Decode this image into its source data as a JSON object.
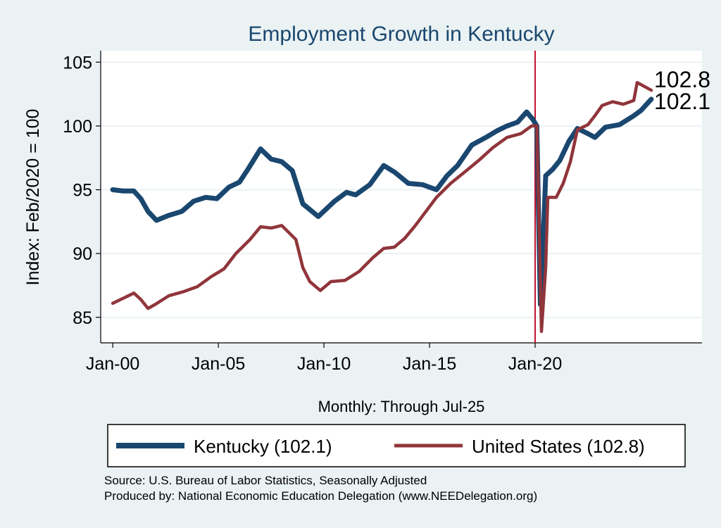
{
  "chart_data": {
    "type": "line",
    "title": "Employment Growth in Kentucky",
    "xlabel": "Monthly: Through Jul-25",
    "ylabel": "Index: Feb/2020 = 100",
    "xlim": [
      1999.43,
      2027.9
    ],
    "ylim": [
      83.0,
      105.9
    ],
    "x_ticks": [
      {
        "value": 2000,
        "label": "Jan-00"
      },
      {
        "value": 2005,
        "label": "Jan-05"
      },
      {
        "value": 2010,
        "label": "Jan-10"
      },
      {
        "value": 2015,
        "label": "Jan-15"
      },
      {
        "value": 2020,
        "label": "Jan-20"
      }
    ],
    "y_ticks": [
      85,
      90,
      95,
      100,
      105
    ],
    "grid": true,
    "reference_line_x": 2020.0,
    "reference_line_color": "#c8102e",
    "series": [
      {
        "name": "Kentucky",
        "legend_label": "Kentucky (102.1)",
        "end_label": "102.1",
        "color": "#1a476f",
        "points": [
          [
            2000.0,
            95.0
          ],
          [
            2000.5,
            94.9
          ],
          [
            2001.0,
            94.9
          ],
          [
            2001.33,
            94.3
          ],
          [
            2001.67,
            93.3
          ],
          [
            2002.07,
            92.6
          ],
          [
            2002.67,
            93.0
          ],
          [
            2003.27,
            93.3
          ],
          [
            2003.83,
            94.1
          ],
          [
            2004.4,
            94.4
          ],
          [
            2004.93,
            94.3
          ],
          [
            2005.5,
            95.2
          ],
          [
            2006.0,
            95.6
          ],
          [
            2006.4,
            96.6
          ],
          [
            2007.0,
            98.2
          ],
          [
            2007.5,
            97.4
          ],
          [
            2008.0,
            97.2
          ],
          [
            2008.5,
            96.5
          ],
          [
            2009.0,
            93.9
          ],
          [
            2009.73,
            92.9
          ],
          [
            2010.5,
            94.1
          ],
          [
            2011.07,
            94.8
          ],
          [
            2011.5,
            94.6
          ],
          [
            2012.17,
            95.4
          ],
          [
            2012.83,
            96.9
          ],
          [
            2013.33,
            96.4
          ],
          [
            2014.0,
            95.5
          ],
          [
            2014.67,
            95.4
          ],
          [
            2015.33,
            95.0
          ],
          [
            2015.83,
            96.1
          ],
          [
            2016.33,
            96.9
          ],
          [
            2017.0,
            98.5
          ],
          [
            2017.67,
            99.1
          ],
          [
            2018.17,
            99.6
          ],
          [
            2018.67,
            100.0
          ],
          [
            2019.17,
            100.3
          ],
          [
            2019.6,
            101.1
          ],
          [
            2019.9,
            100.5
          ],
          [
            2020.08,
            100.0
          ],
          [
            2020.25,
            86.0
          ],
          [
            2020.4,
            91.7
          ],
          [
            2020.5,
            96.1
          ],
          [
            2020.83,
            96.6
          ],
          [
            2021.17,
            97.3
          ],
          [
            2021.6,
            98.8
          ],
          [
            2022.0,
            99.8
          ],
          [
            2022.5,
            99.4
          ],
          [
            2022.83,
            99.1
          ],
          [
            2023.33,
            99.9
          ],
          [
            2024.0,
            100.1
          ],
          [
            2024.67,
            100.8
          ],
          [
            2025.0,
            101.2
          ],
          [
            2025.5,
            102.1
          ]
        ]
      },
      {
        "name": "United States",
        "legend_label": "United States (102.8)",
        "end_label": "102.8",
        "color": "#90353b",
        "points": [
          [
            2000.0,
            86.1
          ],
          [
            2000.5,
            86.5
          ],
          [
            2001.0,
            86.9
          ],
          [
            2001.33,
            86.4
          ],
          [
            2001.67,
            85.7
          ],
          [
            2002.0,
            86.0
          ],
          [
            2002.67,
            86.7
          ],
          [
            2003.33,
            87.0
          ],
          [
            2004.0,
            87.4
          ],
          [
            2004.67,
            88.2
          ],
          [
            2005.27,
            88.8
          ],
          [
            2005.83,
            90.0
          ],
          [
            2006.5,
            91.1
          ],
          [
            2007.0,
            92.1
          ],
          [
            2007.5,
            92.0
          ],
          [
            2008.0,
            92.2
          ],
          [
            2008.67,
            91.1
          ],
          [
            2009.0,
            88.9
          ],
          [
            2009.33,
            87.8
          ],
          [
            2009.83,
            87.1
          ],
          [
            2010.33,
            87.8
          ],
          [
            2011.0,
            87.9
          ],
          [
            2011.67,
            88.6
          ],
          [
            2012.33,
            89.7
          ],
          [
            2012.83,
            90.4
          ],
          [
            2013.33,
            90.5
          ],
          [
            2013.83,
            91.2
          ],
          [
            2014.33,
            92.2
          ],
          [
            2014.83,
            93.3
          ],
          [
            2015.33,
            94.4
          ],
          [
            2016.0,
            95.5
          ],
          [
            2016.67,
            96.4
          ],
          [
            2017.33,
            97.3
          ],
          [
            2018.0,
            98.3
          ],
          [
            2018.67,
            99.1
          ],
          [
            2019.33,
            99.4
          ],
          [
            2019.83,
            100.0
          ],
          [
            2020.08,
            100.0
          ],
          [
            2020.3,
            83.9
          ],
          [
            2020.5,
            88.9
          ],
          [
            2020.6,
            94.4
          ],
          [
            2021.0,
            94.4
          ],
          [
            2021.33,
            95.5
          ],
          [
            2021.67,
            97.2
          ],
          [
            2022.0,
            99.7
          ],
          [
            2022.5,
            100.1
          ],
          [
            2022.83,
            100.8
          ],
          [
            2023.17,
            101.6
          ],
          [
            2023.67,
            101.9
          ],
          [
            2024.17,
            101.7
          ],
          [
            2024.67,
            102.0
          ],
          [
            2024.83,
            103.4
          ],
          [
            2025.17,
            103.1
          ],
          [
            2025.5,
            102.8
          ]
        ]
      }
    ],
    "legend_placement": "bottom"
  },
  "notes": {
    "source": "Source: U.S. Bureau of Labor Statistics, Seasonally Adjusted",
    "produced_by": "Produced by: National Economic Education Delegation (www.NEEDelegation.org)"
  }
}
